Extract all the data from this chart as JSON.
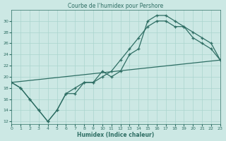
{
  "title": "Courbe de l'humidex pour Pershore",
  "xlabel": "Humidex (Indice chaleur)",
  "bg_color": "#cce8e4",
  "line_color": "#2e6e64",
  "grid_color": "#aad4ce",
  "line1_x": [
    0,
    1,
    2,
    3,
    4,
    5,
    6,
    7,
    8,
    9,
    10,
    11,
    12,
    13,
    14,
    15,
    16,
    17,
    18,
    19,
    20,
    21,
    22,
    23
  ],
  "line1_y": [
    19,
    18,
    16,
    14,
    12,
    14,
    17,
    17,
    19,
    19,
    21,
    20,
    21,
    24,
    25,
    30,
    31,
    31,
    30,
    29,
    27,
    26,
    25,
    23
  ],
  "line2_x": [
    0,
    1,
    2,
    3,
    4,
    5,
    6,
    7,
    8,
    9,
    10,
    11,
    12,
    13,
    14,
    15,
    16,
    17,
    18,
    19,
    20,
    21,
    22,
    23
  ],
  "line2_y": [
    19,
    18,
    16,
    14,
    12,
    14,
    17,
    18,
    19,
    19,
    20,
    21,
    23,
    25,
    27,
    29,
    30,
    30,
    29,
    29,
    28,
    27,
    26,
    23
  ],
  "line3_x": [
    0,
    23
  ],
  "line3_y": [
    19,
    23
  ],
  "xlim": [
    0,
    23
  ],
  "ylim": [
    11.5,
    32
  ],
  "yticks": [
    12,
    14,
    16,
    18,
    20,
    22,
    24,
    26,
    28,
    30
  ],
  "xticks": [
    0,
    1,
    2,
    3,
    4,
    5,
    6,
    7,
    8,
    9,
    10,
    11,
    12,
    13,
    14,
    15,
    16,
    17,
    18,
    19,
    20,
    21,
    22,
    23
  ],
  "title_fontsize": 5.5,
  "figsize": [
    3.2,
    2.0
  ],
  "dpi": 100
}
